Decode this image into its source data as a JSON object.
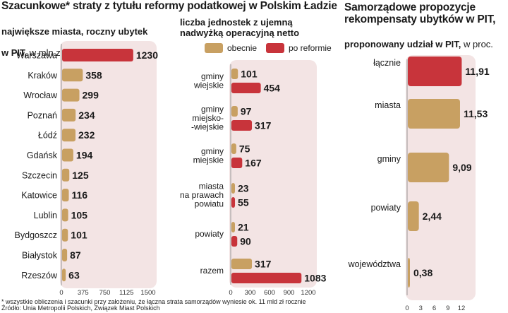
{
  "title": "Szacunkowe* straty z tytułu reformy podatkowej w Polskim Ładzie",
  "colors": {
    "before": "#c8a062",
    "after": "#c8343b",
    "panel": "#f3e4e4",
    "text": "#1a1a1a"
  },
  "footnote": "* wszystkie obliczenia i szacunki przy założeniu, że łączna strata samorządów wyniesie ok. 11 mld zł rocznie",
  "source": "Źródło: Unia Metropolii Polskich, Związek Miast Polskich",
  "chart_data": [
    {
      "type": "bar",
      "orientation": "horizontal",
      "subtitle_bold": "największe miasta, roczny ubytek",
      "subtitle_bold2": "w PIT,",
      "subtitle_unit": " w mln zł",
      "categories": [
        "Warszawa",
        "Kraków",
        "Wrocław",
        "Poznań",
        "Łódź",
        "Gdańsk",
        "Szczecin",
        "Katowice",
        "Lublin",
        "Bydgoszcz",
        "Białystok",
        "Rzeszów"
      ],
      "values": [
        1230,
        358,
        299,
        234,
        232,
        194,
        125,
        116,
        105,
        101,
        87,
        63
      ],
      "xlim": [
        0,
        1500
      ],
      "xticks": [
        0,
        375,
        750,
        1125,
        1500
      ]
    },
    {
      "type": "bar",
      "orientation": "horizontal",
      "subtitle": "liczba jednostek z ujemną\nnadwyżką operacyjną netto",
      "legend": [
        "obecnie",
        "po reformie"
      ],
      "categories": [
        "gminy\nwiejskie",
        "gminy\nmiejsko-\n-wiejskie",
        "gminy\nmiejskie",
        "miasta\nna prawach\npowiatu",
        "powiaty",
        "razem"
      ],
      "series": [
        {
          "name": "obecnie",
          "values": [
            101,
            97,
            75,
            23,
            21,
            317
          ]
        },
        {
          "name": "po reformie",
          "values": [
            454,
            317,
            167,
            55,
            90,
            1083
          ]
        }
      ],
      "xlim": [
        0,
        1200
      ],
      "xticks": [
        0,
        300,
        600,
        900,
        1200
      ]
    },
    {
      "type": "bar",
      "orientation": "horizontal",
      "title": "Samorządowe propozycje\nrekompensaty ubytków w PIT,",
      "subtitle_bold": "proponowany udział w PIT,",
      "subtitle_unit": " w proc.",
      "categories": [
        "łącznie",
        "miasta",
        "gminy",
        "powiaty",
        "województwa"
      ],
      "values": [
        11.91,
        11.53,
        9.09,
        2.44,
        0.38
      ],
      "value_labels": [
        "11,91",
        "11,53",
        "9,09",
        "2,44",
        "0,38"
      ],
      "xlim": [
        0,
        12
      ],
      "xticks": [
        0,
        3,
        6,
        9,
        12
      ],
      "highlight_first": true
    }
  ]
}
